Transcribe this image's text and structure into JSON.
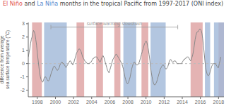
{
  "chart_data": {
    "type": "line",
    "title": [
      {
        "text": "El Niño",
        "color": "#e05050"
      },
      {
        "text": " and ",
        "color": "#444444"
      },
      {
        "text": "La Niña",
        "color": "#5588cc"
      },
      {
        "text": " months in the tropical Pacific from 1997-2017 (ONI index)",
        "color": "#444444"
      }
    ],
    "ylabel": "difference from average\nsea surface temperature (°C)",
    "xlim": [
      1997.0,
      2018.6
    ],
    "ylim": [
      -2.5,
      3.1
    ],
    "xticks": [
      1998,
      2000,
      2002,
      2004,
      2006,
      2008,
      2010,
      2012,
      2014,
      2016,
      2018
    ],
    "yticks": [
      -2,
      -1,
      0,
      1,
      2,
      3
    ],
    "grid": false,
    "hlines": [
      0
    ],
    "shaded_periods": [
      {
        "color": "#dda0a0",
        "periods": [
          [
            1997.42,
            1998.5
          ],
          [
            2002.33,
            2003.17
          ],
          [
            2004.5,
            2005.25
          ],
          [
            2006.5,
            2007.17
          ],
          [
            2009.5,
            2010.25
          ],
          [
            2014.92,
            2016.25
          ],
          [
            2018.0,
            2018.6
          ]
        ]
      },
      {
        "color": "#a0b8d8",
        "periods": [
          [
            1998.75,
            2001.25
          ],
          [
            2007.5,
            2008.92
          ],
          [
            2010.5,
            2012.17
          ],
          [
            2016.5,
            2017.08
          ],
          [
            2017.5,
            2018.6
          ]
        ]
      }
    ],
    "annotations": [
      {
        "text": "surface warming slowdown",
        "x1": 1999.5,
        "x2": 2013.5,
        "y": 2.75,
        "color": "#999999"
      }
    ],
    "x": [
      1997.0,
      1997.083,
      1997.167,
      1997.25,
      1997.333,
      1997.417,
      1997.5,
      1997.583,
      1997.667,
      1997.75,
      1997.833,
      1997.917,
      1998.0,
      1998.083,
      1998.167,
      1998.25,
      1998.333,
      1998.417,
      1998.5,
      1998.583,
      1998.667,
      1998.75,
      1998.833,
      1998.917,
      1999.0,
      1999.083,
      1999.167,
      1999.25,
      1999.333,
      1999.417,
      1999.5,
      1999.583,
      1999.667,
      1999.75,
      1999.833,
      1999.917,
      2000.0,
      2000.083,
      2000.167,
      2000.25,
      2000.333,
      2000.417,
      2000.5,
      2000.583,
      2000.667,
      2000.75,
      2000.833,
      2000.917,
      2001.0,
      2001.083,
      2001.167,
      2001.25,
      2001.333,
      2001.417,
      2001.5,
      2001.583,
      2001.667,
      2001.75,
      2001.833,
      2001.917,
      2002.0,
      2002.083,
      2002.167,
      2002.25,
      2002.333,
      2002.417,
      2002.5,
      2002.583,
      2002.667,
      2002.75,
      2002.833,
      2002.917,
      2003.0,
      2003.083,
      2003.167,
      2003.25,
      2003.333,
      2003.417,
      2003.5,
      2003.583,
      2003.667,
      2003.75,
      2003.833,
      2003.917,
      2004.0,
      2004.083,
      2004.167,
      2004.25,
      2004.333,
      2004.417,
      2004.5,
      2004.583,
      2004.667,
      2004.75,
      2004.833,
      2004.917,
      2005.0,
      2005.083,
      2005.167,
      2005.25,
      2005.333,
      2005.417,
      2005.5,
      2005.583,
      2005.667,
      2005.75,
      2005.833,
      2005.917,
      2006.0,
      2006.083,
      2006.167,
      2006.25,
      2006.333,
      2006.417,
      2006.5,
      2006.583,
      2006.667,
      2006.75,
      2006.833,
      2006.917,
      2007.0,
      2007.083,
      2007.167,
      2007.25,
      2007.333,
      2007.417,
      2007.5,
      2007.583,
      2007.667,
      2007.75,
      2007.833,
      2007.917,
      2008.0,
      2008.083,
      2008.167,
      2008.25,
      2008.333,
      2008.417,
      2008.5,
      2008.583,
      2008.667,
      2008.75,
      2008.833,
      2008.917,
      2009.0,
      2009.083,
      2009.167,
      2009.25,
      2009.333,
      2009.417,
      2009.5,
      2009.583,
      2009.667,
      2009.75,
      2009.833,
      2009.917,
      2010.0,
      2010.083,
      2010.167,
      2010.25,
      2010.333,
      2010.417,
      2010.5,
      2010.583,
      2010.667,
      2010.75,
      2010.833,
      2010.917,
      2011.0,
      2011.083,
      2011.167,
      2011.25,
      2011.333,
      2011.417,
      2011.5,
      2011.583,
      2011.667,
      2011.75,
      2011.833,
      2011.917,
      2012.0,
      2012.083,
      2012.167,
      2012.25,
      2012.333,
      2012.417,
      2012.5,
      2012.583,
      2012.667,
      2012.75,
      2012.833,
      2012.917,
      2013.0,
      2013.083,
      2013.167,
      2013.25,
      2013.333,
      2013.417,
      2013.5,
      2013.583,
      2013.667,
      2013.75,
      2013.833,
      2013.917,
      2014.0,
      2014.083,
      2014.167,
      2014.25,
      2014.333,
      2014.417,
      2014.5,
      2014.583,
      2014.667,
      2014.75,
      2014.833,
      2014.917,
      2015.0,
      2015.083,
      2015.167,
      2015.25,
      2015.333,
      2015.417,
      2015.5,
      2015.583,
      2015.667,
      2015.75,
      2015.833,
      2015.917,
      2016.0,
      2016.083,
      2016.167,
      2016.25,
      2016.333,
      2016.417,
      2016.5,
      2016.583,
      2016.667,
      2016.75,
      2016.833,
      2016.917,
      2017.0,
      2017.083,
      2017.167,
      2017.25,
      2017.333,
      2017.417,
      2017.5,
      2017.583,
      2017.667,
      2017.75,
      2017.833,
      2017.917,
      2018.0,
      2018.083,
      2018.167,
      2018.25
    ],
    "series": [
      {
        "color": "#888888",
        "values": [
          0.5,
          0.8,
          1.1,
          1.5,
          1.8,
          2.0,
          2.3,
          2.5,
          2.4,
          2.2,
          1.8,
          1.4,
          0.8,
          0.3,
          -0.2,
          -0.7,
          -1.0,
          -1.2,
          -1.3,
          -1.4,
          -1.3,
          -1.1,
          -1.0,
          -1.0,
          -1.1,
          -1.2,
          -1.3,
          -1.3,
          -1.2,
          -1.0,
          -0.8,
          -0.6,
          -0.5,
          -0.3,
          -0.2,
          -0.2,
          -0.3,
          -0.4,
          -0.5,
          -0.5,
          -0.4,
          -0.3,
          -0.1,
          0.0,
          0.1,
          0.1,
          0.0,
          0.0,
          -0.1,
          -0.2,
          -0.3,
          -0.2,
          -0.1,
          0.0,
          0.1,
          0.2,
          0.2,
          0.1,
          0.0,
          -0.1,
          0.0,
          0.2,
          0.4,
          0.6,
          0.8,
          0.9,
          1.0,
          1.1,
          1.1,
          1.0,
          0.9,
          0.7,
          0.5,
          0.4,
          0.3,
          0.2,
          0.1,
          0.1,
          0.0,
          0.0,
          0.0,
          0.0,
          0.1,
          0.1,
          0.2,
          0.3,
          0.4,
          0.4,
          0.5,
          0.5,
          0.5,
          0.5,
          0.4,
          0.3,
          0.2,
          0.1,
          0.2,
          0.4,
          0.5,
          0.6,
          0.5,
          0.3,
          0.1,
          -0.1,
          -0.3,
          -0.5,
          -0.6,
          -0.7,
          -0.5,
          -0.3,
          -0.1,
          0.1,
          0.3,
          0.4,
          0.5,
          0.6,
          0.7,
          0.7,
          0.6,
          0.5,
          0.4,
          0.3,
          0.2,
          0.1,
          0.0,
          -0.2,
          -0.4,
          -0.7,
          -1.0,
          -1.2,
          -1.4,
          -1.5,
          -1.5,
          -1.4,
          -1.2,
          -1.0,
          -0.7,
          -0.4,
          -0.2,
          0.0,
          0.1,
          0.1,
          0.0,
          -0.1,
          -0.1,
          -0.1,
          0.0,
          0.1,
          0.3,
          0.5,
          0.7,
          0.9,
          1.1,
          1.3,
          1.5,
          1.6,
          1.7,
          1.6,
          1.4,
          1.1,
          0.7,
          0.3,
          -0.3,
          -0.7,
          -1.0,
          -1.3,
          -1.5,
          -1.6,
          -1.6,
          -1.5,
          -1.4,
          -1.2,
          -1.0,
          -0.8,
          -0.6,
          -0.4,
          -0.3,
          -0.2,
          -0.1,
          -0.1,
          -0.2,
          -0.3,
          -0.4,
          -0.4,
          -0.3,
          -0.2,
          0.0,
          0.2,
          0.3,
          0.3,
          0.2,
          0.1,
          0.1,
          0.2,
          0.2,
          0.2,
          0.1,
          0.0,
          0.0,
          0.0,
          0.0,
          0.0,
          0.0,
          0.0,
          0.1,
          0.2,
          0.3,
          0.3,
          0.4,
          0.4,
          0.5,
          0.5,
          0.5,
          0.4,
          0.3,
          0.2,
          0.3,
          0.5,
          0.7,
          1.0,
          1.4,
          1.8,
          2.1,
          2.3,
          2.4,
          2.4,
          2.5,
          2.6,
          2.6,
          2.5,
          2.3,
          1.9,
          1.4,
          0.8,
          0.2,
          -0.3,
          -0.6,
          -0.8,
          -0.9,
          -0.9,
          -0.8,
          -0.6,
          -0.4,
          -0.2,
          -0.1,
          0.0,
          0.0,
          0.0,
          0.0,
          -0.1,
          -0.2,
          -0.3,
          -0.3,
          0.0,
          0.2,
          0.5
        ]
      }
    ]
  }
}
